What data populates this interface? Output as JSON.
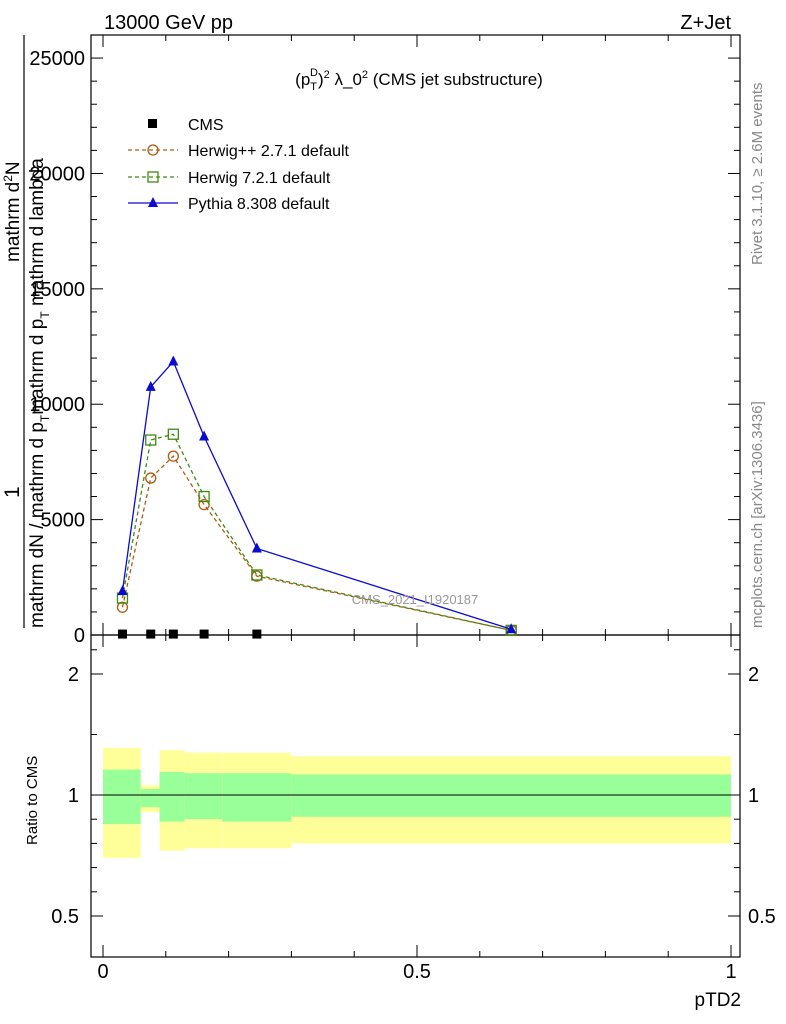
{
  "header": {
    "left": "13000 GeV pp",
    "right": "Z+Jet"
  },
  "side_labels": {
    "rivet": "Rivet 3.1.10, ≥ 2.6M events",
    "mcplots": "mcplots.cern.ch [arXiv:1306.3436]"
  },
  "watermark": "CMS_2021_I1920187",
  "colors": {
    "cms": "#000000",
    "herwig_pp": "#b05a10",
    "herwig7": "#3c8c10",
    "pythia": "#0a0ad0",
    "band_stat": "#99ff99",
    "band_total": "#ffff99"
  },
  "chart_data": [
    {
      "type": "line",
      "panel": "main",
      "title": "(p_T^D)^2 λ_0^2 (CMS jet substructure)",
      "ylabel_parts": [
        "1",
        "mathrm d²N",
        "mathrm dN / mathrm d p_T mathrm d p_T mathrm d lambda"
      ],
      "xlim": [
        0,
        1
      ],
      "ylim": [
        0,
        26000
      ],
      "yticks": [
        0,
        5000,
        10000,
        15000,
        20000,
        25000
      ],
      "ytick_labels": [
        "0",
        "5000",
        "10000",
        "15000",
        "20000",
        "25000"
      ],
      "log_y": false,
      "legend_position": "top-left",
      "series": [
        {
          "name": "CMS",
          "marker": "filled-square",
          "x": [
            0.031,
            0.076,
            0.112,
            0.161,
            0.245
          ],
          "y": [
            40,
            40,
            40,
            40,
            40
          ]
        },
        {
          "name": "Herwig++ 2.7.1 default",
          "marker": "open-circle",
          "line": "dashed",
          "x": [
            0.031,
            0.076,
            0.112,
            0.161,
            0.245,
            0.65
          ],
          "y": [
            1200,
            6800,
            7750,
            5650,
            2550,
            200
          ]
        },
        {
          "name": "Herwig 7.2.1 default",
          "marker": "open-square",
          "line": "dashed",
          "x": [
            0.031,
            0.076,
            0.112,
            0.161,
            0.245,
            0.65
          ],
          "y": [
            1600,
            8450,
            8700,
            6000,
            2600,
            200
          ]
        },
        {
          "name": "Pythia 8.308 default",
          "marker": "filled-triangle",
          "line": "solid",
          "x": [
            0.031,
            0.076,
            0.112,
            0.161,
            0.245,
            0.65
          ],
          "y": [
            1900,
            10750,
            11850,
            8600,
            3750,
            250
          ]
        }
      ]
    },
    {
      "type": "area",
      "panel": "ratio",
      "ylabel": "Ratio to CMS",
      "xlabel": "pTD2",
      "xlim": [
        0,
        1
      ],
      "ylim": [
        0.3,
        2.3
      ],
      "yticks": [
        0.5,
        1,
        2
      ],
      "ytick_labels": [
        "0.5",
        "1",
        "2"
      ],
      "xticks": [
        0,
        0.5,
        1
      ],
      "xtick_labels": [
        "0",
        "0.5",
        "1"
      ],
      "reference_line": 1,
      "bands": [
        {
          "x_lo": 0.0,
          "x_hi": 0.06,
          "stat": [
            0.88,
            1.21
          ],
          "total": [
            0.74,
            1.39
          ]
        },
        {
          "x_lo": 0.06,
          "x_hi": 0.09,
          "stat": [
            0.95,
            1.05
          ],
          "total": [
            0.93,
            1.08
          ]
        },
        {
          "x_lo": 0.09,
          "x_hi": 0.13,
          "stat": [
            0.89,
            1.19
          ],
          "total": [
            0.77,
            1.37
          ]
        },
        {
          "x_lo": 0.13,
          "x_hi": 0.19,
          "stat": [
            0.9,
            1.18
          ],
          "total": [
            0.78,
            1.35
          ]
        },
        {
          "x_lo": 0.19,
          "x_hi": 0.3,
          "stat": [
            0.89,
            1.18
          ],
          "total": [
            0.78,
            1.35
          ]
        },
        {
          "x_lo": 0.3,
          "x_hi": 1.0,
          "stat": [
            0.91,
            1.17
          ],
          "total": [
            0.8,
            1.32
          ]
        }
      ]
    }
  ]
}
